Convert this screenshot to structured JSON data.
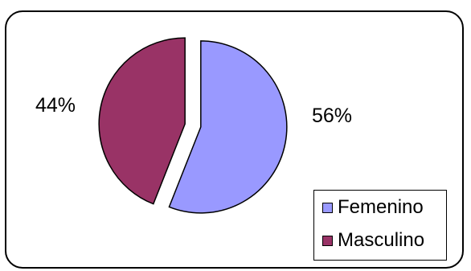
{
  "chart_data": {
    "type": "pie",
    "title": "",
    "categories": [
      "Femenino",
      "Masculino"
    ],
    "values": [
      56,
      44
    ],
    "labels": [
      "56%",
      "44%"
    ],
    "colors": [
      "#9999ff",
      "#993366"
    ],
    "legend_position": "bottom-right",
    "exploded": true
  },
  "legend": {
    "items": [
      {
        "label": "Femenino",
        "color": "#9999ff"
      },
      {
        "label": "Masculino",
        "color": "#993366"
      }
    ]
  }
}
